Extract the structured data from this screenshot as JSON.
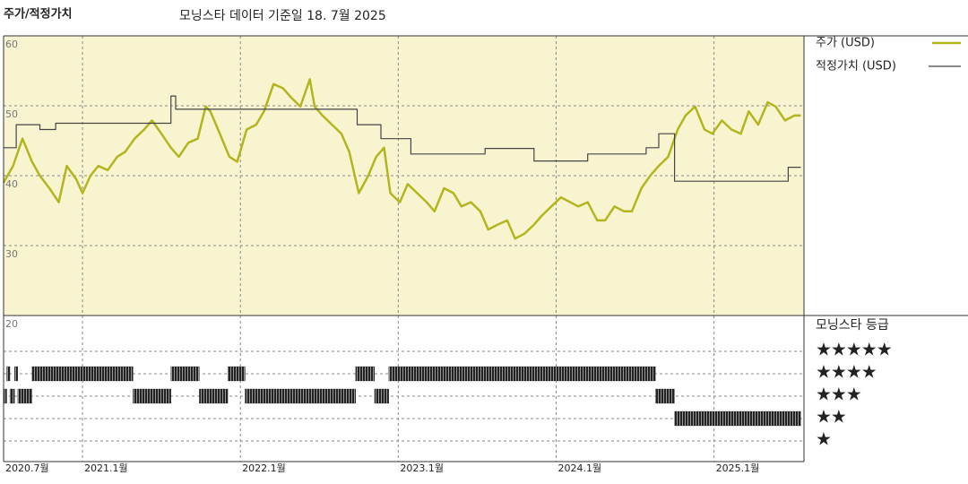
{
  "chart_data": [
    {
      "type": "line",
      "title": "주가/적정가치",
      "subtitle": "모닝스타 데이터 기준일 18. 7월 2025",
      "xlim": [
        2020.5,
        2025.57
      ],
      "xticks": [
        {
          "value": 2020.5,
          "label": "2020.7월"
        },
        {
          "value": 2021,
          "label": "2021.1월"
        },
        {
          "value": 2022,
          "label": "2022.1월"
        },
        {
          "value": 2023,
          "label": "2023.1월"
        },
        {
          "value": 2024,
          "label": "2024.1월"
        },
        {
          "value": 2025,
          "label": "2025.1월"
        }
      ],
      "ylim": [
        20,
        60
      ],
      "yticks": [
        20,
        30,
        40,
        50,
        60
      ],
      "grid": true,
      "legend": "right",
      "series": [
        {
          "name": "주가 (USD)",
          "color": "#b3b51f",
          "x": [
            2020.5,
            2020.56,
            2020.62,
            2020.68,
            2020.73,
            2020.79,
            2020.85,
            2020.9,
            2020.96,
            2021.0,
            2021.05,
            2021.1,
            2021.16,
            2021.22,
            2021.27,
            2021.33,
            2021.39,
            2021.44,
            2021.5,
            2021.56,
            2021.61,
            2021.67,
            2021.73,
            2021.78,
            2021.81,
            2021.87,
            2021.93,
            2021.98,
            2022.04,
            2022.1,
            2022.15,
            2022.21,
            2022.27,
            2022.32,
            2022.38,
            2022.44,
            2022.47,
            2022.52,
            2022.58,
            2022.64,
            2022.69,
            2022.75,
            2022.81,
            2022.86,
            2022.91,
            2022.95,
            2023.01,
            2023.06,
            2023.12,
            2023.18,
            2023.23,
            2023.29,
            2023.35,
            2023.4,
            2023.46,
            2023.52,
            2023.57,
            2023.63,
            2023.69,
            2023.74,
            2023.8,
            2023.86,
            2023.91,
            2023.97,
            2024.03,
            2024.09,
            2024.14,
            2024.2,
            2024.26,
            2024.31,
            2024.37,
            2024.43,
            2024.48,
            2024.54,
            2024.6,
            2024.65,
            2024.71,
            2024.77,
            2024.82,
            2024.88,
            2024.94,
            2024.99,
            2025.05,
            2025.11,
            2025.17,
            2025.22,
            2025.28,
            2025.34,
            2025.39,
            2025.45,
            2025.51,
            2025.55
          ],
          "values": [
            39,
            41.4,
            45.3,
            42,
            40,
            38.2,
            36.2,
            41.4,
            39.5,
            37.5,
            40,
            41.4,
            40.8,
            42.7,
            43.4,
            45.3,
            46.6,
            47.9,
            46,
            44,
            42.7,
            44.7,
            45.3,
            49.9,
            49.2,
            46,
            42.7,
            42,
            46.6,
            47.3,
            49.2,
            53.1,
            52.5,
            51.2,
            49.9,
            53.8,
            49.9,
            48.6,
            47.3,
            46,
            43.4,
            37.5,
            40,
            42.7,
            44,
            37.5,
            36.2,
            38.8,
            37.5,
            36.2,
            34.9,
            38.2,
            37.5,
            35.6,
            36.2,
            34.9,
            32.3,
            33,
            33.6,
            31,
            31.7,
            33,
            34.3,
            35.6,
            36.9,
            36.2,
            35.6,
            36.2,
            33.6,
            33.6,
            35.6,
            34.9,
            34.9,
            38.2,
            40.1,
            41.4,
            42.7,
            46.6,
            48.6,
            49.9,
            46.6,
            46,
            47.9,
            46.6,
            46,
            49.2,
            47.3,
            50.5,
            49.9,
            47.9,
            48.6,
            48.6
          ]
        },
        {
          "name": "적정가치 (USD)",
          "color": "#444444",
          "x": [
            2020.5,
            2020.58,
            2020.58,
            2020.73,
            2020.73,
            2020.83,
            2020.83,
            2021.56,
            2021.56,
            2021.59,
            2021.59,
            2022.74,
            2022.74,
            2022.89,
            2022.89,
            2023.08,
            2023.08,
            2023.55,
            2023.55,
            2023.86,
            2023.86,
            2024.2,
            2024.2,
            2024.57,
            2024.57,
            2024.65,
            2024.65,
            2024.75,
            2024.75,
            2025.47,
            2025.47,
            2025.55
          ],
          "values": [
            44,
            44,
            47.3,
            47.3,
            46.6,
            46.6,
            47.5,
            47.5,
            51.4,
            51.4,
            49.5,
            49.5,
            47.3,
            47.3,
            45.3,
            45.3,
            43.1,
            43.1,
            43.9,
            43.9,
            42.1,
            42.1,
            43.1,
            43.1,
            44,
            44,
            46,
            46,
            39.2,
            39.2,
            41.2,
            41.2
          ]
        }
      ]
    },
    {
      "type": "rating",
      "title": "모닝스타 등급",
      "yticks": [
        {
          "value": 5,
          "label": "★★★★★"
        },
        {
          "value": 4,
          "label": "★★★★"
        },
        {
          "value": 3,
          "label": "★★★"
        },
        {
          "value": 2,
          "label": "★★"
        },
        {
          "value": 1,
          "label": "★"
        }
      ],
      "color": "#222222",
      "periods": [
        {
          "stars": 3,
          "start": 2020.5,
          "end": 2020.52
        },
        {
          "stars": 4,
          "start": 2020.52,
          "end": 2020.54
        },
        {
          "stars": 3,
          "start": 2020.54,
          "end": 2020.57
        },
        {
          "stars": 4,
          "start": 2020.57,
          "end": 2020.59
        },
        {
          "stars": 3,
          "start": 2020.59,
          "end": 2020.68
        },
        {
          "stars": 4,
          "start": 2020.68,
          "end": 2021.32
        },
        {
          "stars": 3,
          "start": 2021.32,
          "end": 2021.56
        },
        {
          "stars": 4,
          "start": 2021.56,
          "end": 2021.74
        },
        {
          "stars": 3,
          "start": 2021.74,
          "end": 2021.92
        },
        {
          "stars": 4,
          "start": 2021.92,
          "end": 2022.03
        },
        {
          "stars": 3,
          "start": 2022.03,
          "end": 2022.73
        },
        {
          "stars": 4,
          "start": 2022.73,
          "end": 2022.85
        },
        {
          "stars": 3,
          "start": 2022.85,
          "end": 2022.94
        },
        {
          "stars": 4,
          "start": 2022.94,
          "end": 2024.63
        },
        {
          "stars": 3,
          "start": 2024.63,
          "end": 2024.75
        },
        {
          "stars": 2,
          "start": 2024.75,
          "end": 2025.55
        }
      ]
    }
  ]
}
